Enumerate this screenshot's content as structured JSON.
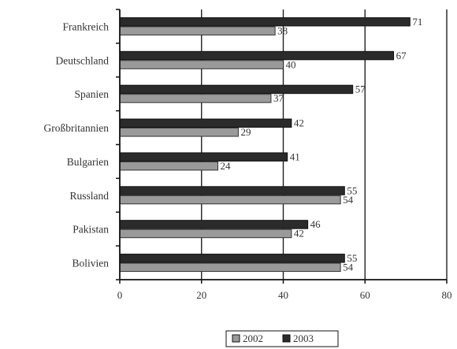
{
  "chart_data": {
    "type": "bar",
    "orientation": "horizontal",
    "categories": [
      "Frankreich",
      "Deutschland",
      "Spanien",
      "Großbritannien",
      "Bulgarien",
      "Russland",
      "Pakistan",
      "Bolivien"
    ],
    "series": [
      {
        "name": "2002",
        "values": [
          38,
          40,
          37,
          29,
          24,
          54,
          42,
          54
        ],
        "color": "#9a9a9a"
      },
      {
        "name": "2003",
        "values": [
          71,
          67,
          57,
          42,
          41,
          55,
          46,
          55
        ],
        "color": "#2b2b2b"
      }
    ],
    "title": "",
    "xlabel": "",
    "ylabel": "",
    "xlim": [
      0,
      80
    ],
    "x_ticks": [
      0,
      20,
      40,
      60,
      80
    ],
    "grid": "vertical major gridlines",
    "legend_position": "bottom-center",
    "data_labels": true
  }
}
